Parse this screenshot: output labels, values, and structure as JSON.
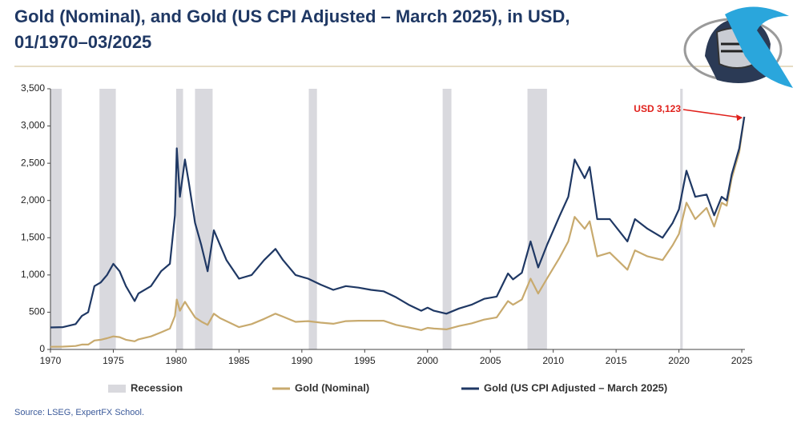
{
  "chart_data": {
    "type": "line",
    "title": "Gold (Nominal), and Gold (US CPI Adjusted – March 2025), in USD, 01/1970–03/2025",
    "title_lines": [
      "Gold (Nominal), and Gold (US CPI Adjusted – March 2025), in USD,",
      "01/1970–03/2025"
    ],
    "source": "Source: LSEG, ExpertFX School.",
    "annotation": {
      "text": "USD 3,123",
      "x": 2025.2,
      "y": 3123,
      "color": "#e0201b"
    },
    "recession_label": "Recession",
    "recession_color": "#d9d9de",
    "recessions": [
      [
        1970.0,
        1970.9
      ],
      [
        1973.9,
        1975.2
      ],
      [
        1980.0,
        1980.55
      ],
      [
        1981.5,
        1982.9
      ],
      [
        1990.55,
        1991.2
      ],
      [
        2001.2,
        2001.9
      ],
      [
        2007.95,
        2009.5
      ],
      [
        2020.1,
        2020.3
      ]
    ],
    "x": [
      1970.0,
      1971.0,
      1972.0,
      1972.5,
      1973.0,
      1973.5,
      1974.0,
      1974.5,
      1975.0,
      1975.5,
      1976.0,
      1976.7,
      1977.0,
      1978.0,
      1978.8,
      1979.5,
      1979.9,
      1980.05,
      1980.3,
      1980.7,
      1981.0,
      1981.5,
      1982.0,
      1982.5,
      1983.0,
      1983.5,
      1984.0,
      1985.0,
      1986.0,
      1987.0,
      1987.9,
      1988.5,
      1989.5,
      1990.5,
      1991.5,
      1992.5,
      1993.5,
      1994.5,
      1995.5,
      1996.5,
      1997.5,
      1998.5,
      1999.5,
      2000.0,
      2000.5,
      2001.5,
      2002.5,
      2003.5,
      2004.5,
      2005.5,
      2006.4,
      2006.8,
      2007.5,
      2008.2,
      2008.8,
      2009.5,
      2010.5,
      2011.2,
      2011.7,
      2012.5,
      2012.9,
      2013.5,
      2014.5,
      2015.9,
      2016.5,
      2017.5,
      2018.7,
      2019.5,
      2020.0,
      2020.6,
      2021.3,
      2022.2,
      2022.8,
      2023.4,
      2023.8,
      2024.2,
      2024.8,
      2025.2
    ],
    "series": [
      {
        "name": "Gold (Nominal)",
        "color": "#c8aa6e",
        "values": [
          35,
          38,
          46,
          65,
          65,
          120,
          130,
          150,
          175,
          165,
          130,
          110,
          135,
          175,
          230,
          280,
          450,
          670,
          520,
          640,
          560,
          430,
          375,
          330,
          480,
          420,
          380,
          300,
          340,
          410,
          480,
          440,
          370,
          380,
          360,
          345,
          380,
          385,
          385,
          385,
          330,
          295,
          260,
          290,
          280,
          270,
          315,
          350,
          400,
          430,
          650,
          600,
          670,
          950,
          750,
          950,
          1230,
          1450,
          1780,
          1620,
          1720,
          1250,
          1300,
          1070,
          1330,
          1250,
          1200,
          1400,
          1550,
          1970,
          1750,
          1900,
          1650,
          1970,
          1930,
          2300,
          2650,
          3123
        ]
      },
      {
        "name": "Gold (US CPI Adjusted – March 2025)",
        "color": "#1f3864",
        "values": [
          295,
          300,
          340,
          450,
          500,
          850,
          900,
          1000,
          1150,
          1050,
          850,
          650,
          750,
          850,
          1050,
          1150,
          1800,
          2700,
          2050,
          2550,
          2250,
          1700,
          1400,
          1050,
          1600,
          1400,
          1200,
          950,
          1000,
          1200,
          1350,
          1200,
          1000,
          950,
          870,
          800,
          850,
          830,
          800,
          780,
          700,
          600,
          520,
          560,
          520,
          480,
          550,
          600,
          680,
          710,
          1020,
          940,
          1030,
          1450,
          1100,
          1400,
          1790,
          2050,
          2550,
          2300,
          2450,
          1750,
          1750,
          1450,
          1750,
          1620,
          1500,
          1700,
          1880,
          2400,
          2050,
          2080,
          1800,
          2050,
          2000,
          2350,
          2700,
          3123
        ]
      }
    ],
    "xlim": [
      1970,
      2025.25
    ],
    "xticks": [
      1970,
      1975,
      1980,
      1985,
      1990,
      1995,
      2000,
      2005,
      2010,
      2015,
      2020,
      2025
    ],
    "ylim": [
      0,
      3500
    ],
    "yticks": [
      0,
      {
        "value": 500,
        "label": "500"
      },
      {
        "value": 1000,
        "label": "1,000"
      },
      {
        "value": 1500,
        "label": "1,500"
      },
      {
        "value": 2000,
        "label": "2,000"
      },
      {
        "value": 2500,
        "label": "2,500"
      },
      {
        "value": 3000,
        "label": "3,000"
      },
      {
        "value": 3500,
        "label": "3,500"
      }
    ]
  }
}
